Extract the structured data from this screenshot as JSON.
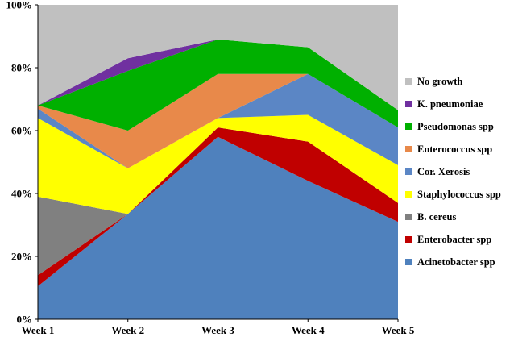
{
  "chart_data": {
    "type": "area",
    "stacked": true,
    "percent": true,
    "x": [
      "Week 1",
      "Week 2",
      "Week 3",
      "Week 4",
      "Week 5"
    ],
    "ylim": [
      0,
      100
    ],
    "yticks": [
      "0%",
      "20%",
      "40%",
      "60%",
      "80%",
      "100%"
    ],
    "grid": false,
    "legend_position": "right",
    "series": [
      {
        "name": "Acinetobacter spp",
        "color": "#4F81BD",
        "values": [
          10.5,
          33.5,
          58,
          44,
          31
        ]
      },
      {
        "name": "Enterobacter spp",
        "color": "#C00000",
        "values": [
          3.5,
          0,
          3,
          12.5,
          6
        ]
      },
      {
        "name": "B. cereus",
        "color": "#808080",
        "values": [
          25,
          0,
          0,
          0,
          0
        ]
      },
      {
        "name": "Staphylococcus spp",
        "color": "#FFFF00",
        "values": [
          25,
          14.5,
          3,
          8.5,
          12
        ]
      },
      {
        "name": "Cor. Xerosis",
        "color": "#5B86C5",
        "values": [
          3,
          0,
          0,
          13,
          12
        ]
      },
      {
        "name": "Enterococcus spp",
        "color": "#E8894A",
        "values": [
          1,
          12,
          14,
          0,
          0
        ]
      },
      {
        "name": "Pseudomonas spp",
        "color": "#00B000",
        "values": [
          0,
          19,
          11,
          8.5,
          5.5
        ]
      },
      {
        "name": "K. pneumoniae",
        "color": "#7030A0",
        "values": [
          0,
          4,
          0,
          0,
          0
        ]
      },
      {
        "name": "No growth",
        "color": "#C0C0C0",
        "values": [
          32,
          17,
          11,
          13.5,
          33.5
        ]
      }
    ]
  }
}
